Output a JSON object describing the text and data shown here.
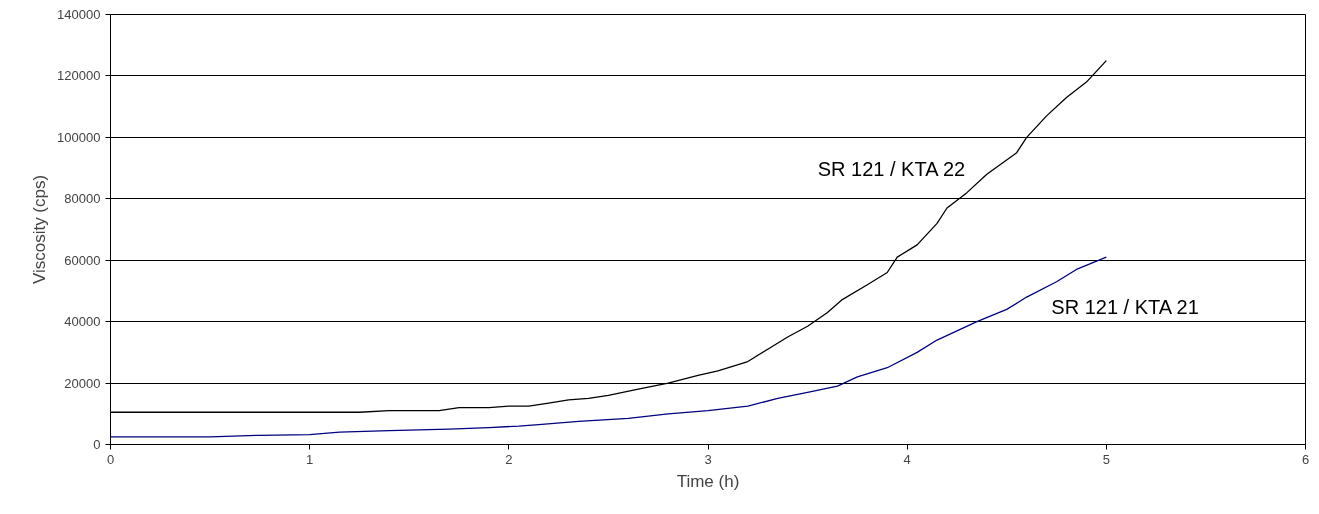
{
  "chart_data": {
    "type": "line",
    "xlabel": "Time (h)",
    "ylabel": "Viscosity (cps)",
    "xlim": [
      0,
      6
    ],
    "xticks": [
      0,
      1,
      2,
      3,
      4,
      5,
      6
    ],
    "ylim": [
      0,
      140000
    ],
    "yticks": [
      0,
      20000,
      40000,
      60000,
      80000,
      100000,
      120000,
      140000
    ],
    "grid": "y",
    "series": [
      {
        "name": "SR 121 / KTA 22",
        "color": "#000000",
        "x": [
          0,
          1.25,
          1.4,
          1.65,
          1.75,
          1.9,
          2,
          2.1,
          2.2,
          2.3,
          2.4,
          2.5,
          2.65,
          2.8,
          2.95,
          3.05,
          3.2,
          3.3,
          3.4,
          3.5,
          3.6,
          3.67,
          3.8,
          3.9,
          3.95,
          4.05,
          4.15,
          4.2,
          4.3,
          4.4,
          4.55,
          4.6,
          4.7,
          4.8,
          4.9,
          5
        ],
        "values": [
          10500,
          10500,
          11000,
          11000,
          12000,
          12000,
          12500,
          12500,
          13500,
          14500,
          15000,
          16000,
          18000,
          20000,
          22500,
          24000,
          27000,
          31000,
          35000,
          38500,
          43000,
          47000,
          52000,
          56000,
          61000,
          65000,
          72000,
          77000,
          82000,
          88000,
          95000,
          100000,
          107000,
          113000,
          118000,
          125000
        ]
      },
      {
        "name": "SR 121 / KTA 21",
        "color": "#000080",
        "x": [
          0,
          0.5,
          0.75,
          1,
          1.15,
          1.4,
          1.7,
          1.9,
          2.05,
          2.15,
          2.35,
          2.6,
          2.8,
          3,
          3.2,
          3.35,
          3.5,
          3.65,
          3.75,
          3.9,
          4.05,
          4.15,
          4.25,
          4.35,
          4.5,
          4.6,
          4.75,
          4.85,
          5
        ],
        "values": [
          2500,
          2500,
          3000,
          3200,
          4000,
          4500,
          5000,
          5500,
          6000,
          6500,
          7500,
          8500,
          10000,
          11000,
          12500,
          15000,
          17000,
          19000,
          22000,
          25000,
          30000,
          34000,
          37000,
          40000,
          44000,
          48000,
          53000,
          57000,
          61000
        ]
      }
    ]
  }
}
